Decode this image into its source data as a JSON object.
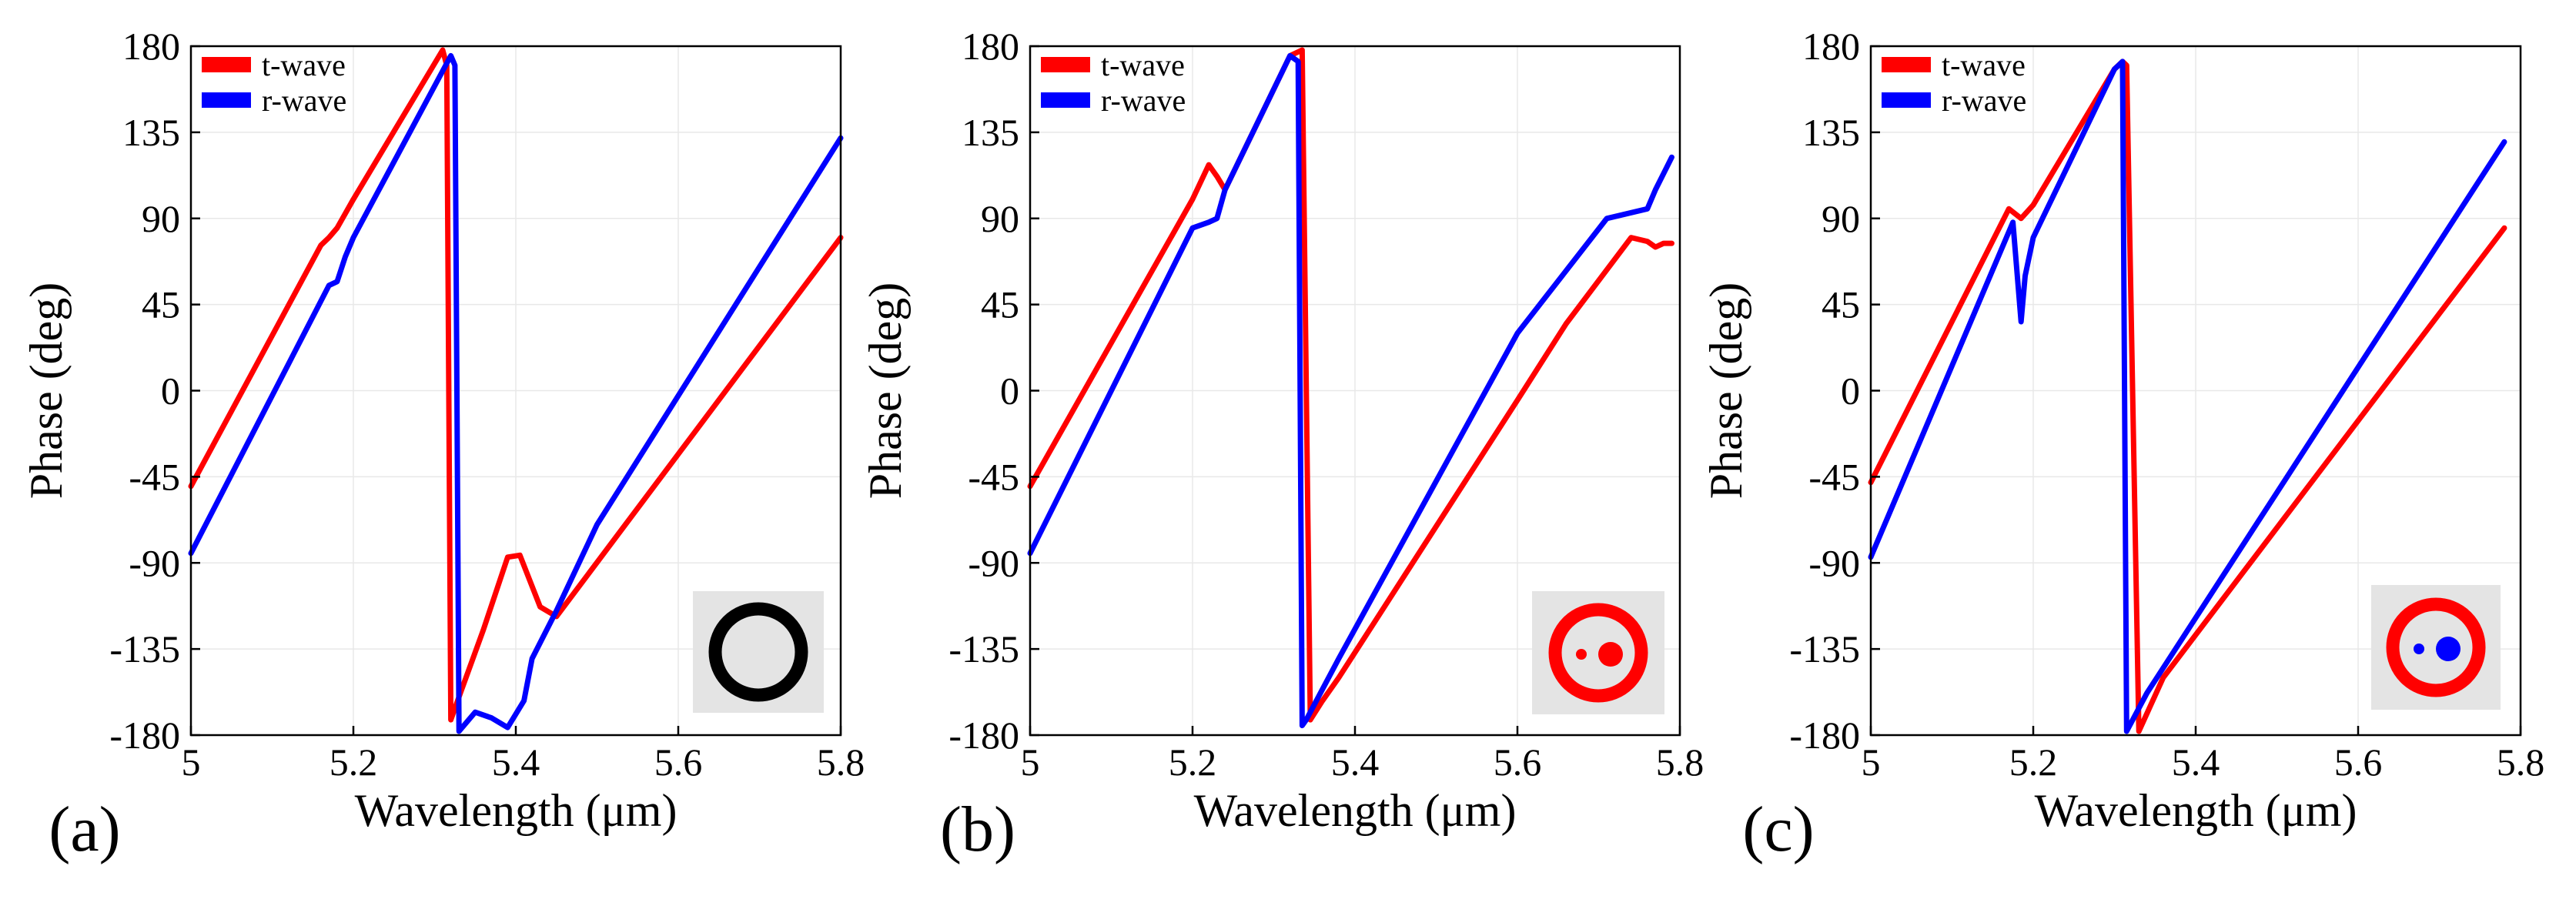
{
  "colors": {
    "t_wave": "#ff0000",
    "r_wave": "#0000ff",
    "inset_bg": "#e4e4e4",
    "ring_a": "#000000"
  },
  "chart_data": [
    {
      "type": "line",
      "panel_label": "(a)",
      "xlabel": "Wavelength (μm)",
      "ylabel": "Phase (deg)",
      "xlim": [
        5,
        5.8
      ],
      "ylim": [
        -180,
        180
      ],
      "xticks": [
        5,
        5.2,
        5.4,
        5.6,
        5.8
      ],
      "xtick_labels": [
        "5",
        "5.2",
        "5.4",
        "5.6",
        "5.8"
      ],
      "yticks": [
        180,
        135,
        90,
        45,
        0,
        -45,
        -90,
        -135,
        -180
      ],
      "ytick_labels": [
        "180",
        "135",
        "90",
        "45",
        "0",
        "-45",
        "-90",
        "-135",
        "-180"
      ],
      "legend": [
        "t-wave",
        "r-wave"
      ],
      "legend_position": "top-left",
      "inset": "single black ring (no dots)",
      "series": [
        {
          "name": "t-wave",
          "color": "#ff0000",
          "x": [
            5.0,
            5.16,
            5.17,
            5.18,
            5.2,
            5.31,
            5.315,
            5.32,
            5.33,
            5.36,
            5.39,
            5.405,
            5.43,
            5.45,
            5.8
          ],
          "y": [
            -50,
            76,
            80,
            85,
            100,
            178,
            170,
            -172,
            -160,
            -125,
            -87,
            -86,
            -113,
            -118,
            80
          ]
        },
        {
          "name": "r-wave",
          "color": "#0000ff",
          "x": [
            5.0,
            5.17,
            5.18,
            5.19,
            5.2,
            5.32,
            5.325,
            5.33,
            5.35,
            5.37,
            5.39,
            5.41,
            5.42,
            5.45,
            5.5,
            5.8
          ],
          "y": [
            -85,
            55,
            57,
            70,
            80,
            175,
            170,
            -178,
            -168,
            -171,
            -176,
            -162,
            -140,
            -115,
            -70,
            132
          ]
        }
      ]
    },
    {
      "type": "line",
      "panel_label": "(b)",
      "xlabel": "Wavelength (μm)",
      "ylabel": "Phase (deg)",
      "xlim": [
        5,
        5.8
      ],
      "ylim": [
        -180,
        180
      ],
      "xticks": [
        5,
        5.2,
        5.4,
        5.6,
        5.8
      ],
      "xtick_labels": [
        "5",
        "5.2",
        "5.4",
        "5.6",
        "5.8"
      ],
      "yticks": [
        180,
        135,
        90,
        45,
        0,
        -45,
        -90,
        -135,
        -180
      ],
      "ytick_labels": [
        "180",
        "135",
        "90",
        "45",
        "0",
        "-45",
        "-90",
        "-135",
        "-180"
      ],
      "legend": [
        "t-wave",
        "r-wave"
      ],
      "legend_position": "top-left",
      "inset": "red ring with two red dots",
      "series": [
        {
          "name": "t-wave",
          "color": "#ff0000",
          "x": [
            5.0,
            5.2,
            5.22,
            5.23,
            5.24,
            5.32,
            5.335,
            5.345,
            5.36,
            5.38,
            5.6,
            5.66,
            5.74,
            5.76,
            5.77,
            5.78,
            5.79
          ],
          "y": [
            -50,
            100,
            118,
            112,
            105,
            175,
            178,
            -172,
            -162,
            -150,
            -5,
            35,
            80,
            78,
            75,
            77,
            77
          ]
        },
        {
          "name": "r-wave",
          "color": "#0000ff",
          "x": [
            5.0,
            5.2,
            5.22,
            5.23,
            5.24,
            5.32,
            5.33,
            5.335,
            5.34,
            5.38,
            5.6,
            5.71,
            5.73,
            5.76,
            5.77,
            5.79
          ],
          "y": [
            -85,
            85,
            88,
            90,
            105,
            175,
            172,
            -175,
            -172,
            -140,
            30,
            90,
            92,
            95,
            105,
            122
          ]
        }
      ]
    },
    {
      "type": "line",
      "panel_label": "(c)",
      "xlabel": "Wavelength (μm)",
      "ylabel": "Phase (deg)",
      "xlim": [
        5,
        5.8
      ],
      "ylim": [
        -180,
        180
      ],
      "xticks": [
        5,
        5.2,
        5.4,
        5.6,
        5.8
      ],
      "xtick_labels": [
        "5",
        "5.2",
        "5.4",
        "5.6",
        "5.8"
      ],
      "yticks": [
        180,
        135,
        90,
        45,
        0,
        -45,
        -90,
        -135,
        -180
      ],
      "ytick_labels": [
        "180",
        "135",
        "90",
        "45",
        "0",
        "-45",
        "-90",
        "-135",
        "-180"
      ],
      "legend": [
        "t-wave",
        "r-wave"
      ],
      "legend_position": "top-left",
      "inset": "red ring with two blue dots",
      "series": [
        {
          "name": "t-wave",
          "color": "#ff0000",
          "x": [
            5.0,
            5.17,
            5.185,
            5.2,
            5.3,
            5.31,
            5.315,
            5.33,
            5.36,
            5.78
          ],
          "y": [
            -48,
            95,
            90,
            97,
            168,
            172,
            170,
            -178,
            -150,
            85
          ]
        },
        {
          "name": "r-wave",
          "color": "#0000ff",
          "x": [
            5.0,
            5.175,
            5.185,
            5.19,
            5.2,
            5.3,
            5.305,
            5.31,
            5.315,
            5.34,
            5.78
          ],
          "y": [
            -87,
            88,
            36,
            60,
            80,
            168,
            170,
            172,
            -178,
            -158,
            130
          ]
        }
      ]
    }
  ]
}
